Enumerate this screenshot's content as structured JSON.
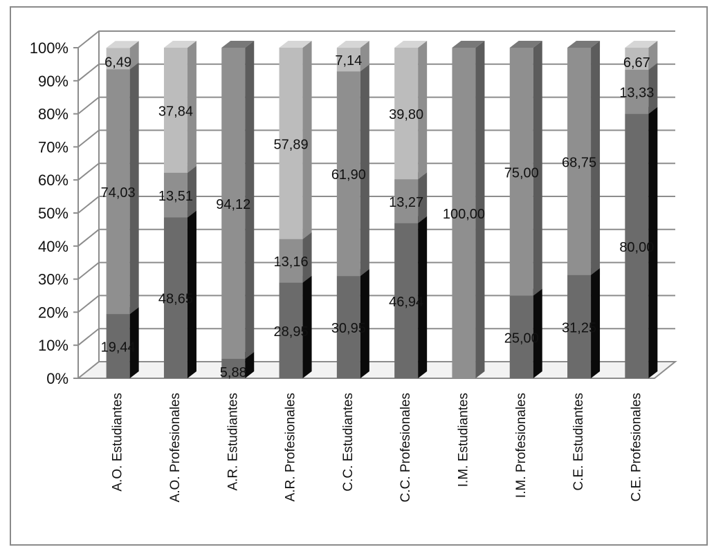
{
  "chart_data": {
    "type": "bar",
    "stacked": true,
    "orientation": "vertical",
    "three_d": true,
    "ylim": [
      0,
      100
    ],
    "y_ticks": [
      "0%",
      "10%",
      "20%",
      "30%",
      "40%",
      "50%",
      "60%",
      "70%",
      "80%",
      "90%",
      "100%"
    ],
    "grid": true,
    "legend": "none",
    "categories": [
      "A.O. Estudiantes",
      "A.O. Profesionales",
      "A.R. Estudiantes",
      "A.R. Profesionales",
      "C.C. Estudiantes",
      "C.C. Profesionales",
      "I.M. Estudiantes",
      "I.M. Profesionales",
      "C.E. Estudiantes",
      "C.E. Profesionales"
    ],
    "series": [
      {
        "values": [
          19.44,
          48.65,
          5.88,
          28.95,
          30.95,
          46.94,
          0,
          25.0,
          31.25,
          80.0
        ],
        "labels": [
          "19,44",
          "48,65",
          "5,88",
          "28,95",
          "30,95",
          "46,94",
          "",
          "25,00",
          "31,25",
          "80,00"
        ],
        "color": "#6b6b6b",
        "side_color": "#0a0a0a",
        "top_color": "#4e4e4e"
      },
      {
        "values": [
          74.03,
          13.51,
          94.12,
          13.16,
          61.9,
          13.27,
          100.0,
          75.0,
          68.75,
          13.33
        ],
        "labels": [
          "74,03",
          "13,51",
          "94,12",
          "13,16",
          "61,90",
          "13,27",
          "100,00",
          "75,00",
          "68,75",
          "13,33"
        ],
        "color": "#8f8f8f",
        "side_color": "#5c5c5c",
        "top_color": "#787878"
      },
      {
        "values": [
          6.49,
          37.84,
          0,
          57.89,
          7.14,
          39.8,
          0,
          0,
          0,
          6.67
        ],
        "labels": [
          "6,49",
          "37,84",
          "",
          "57,89",
          "7,14",
          "39,80",
          "",
          "",
          "",
          "6,67"
        ],
        "color": "#bcbcbc",
        "side_color": "#8e8e8e",
        "top_color": "#d6d6d6"
      }
    ]
  },
  "colors": {
    "grid": "#8c8c8c",
    "axis": "#8c8c8c",
    "wall": "#ffffff"
  }
}
